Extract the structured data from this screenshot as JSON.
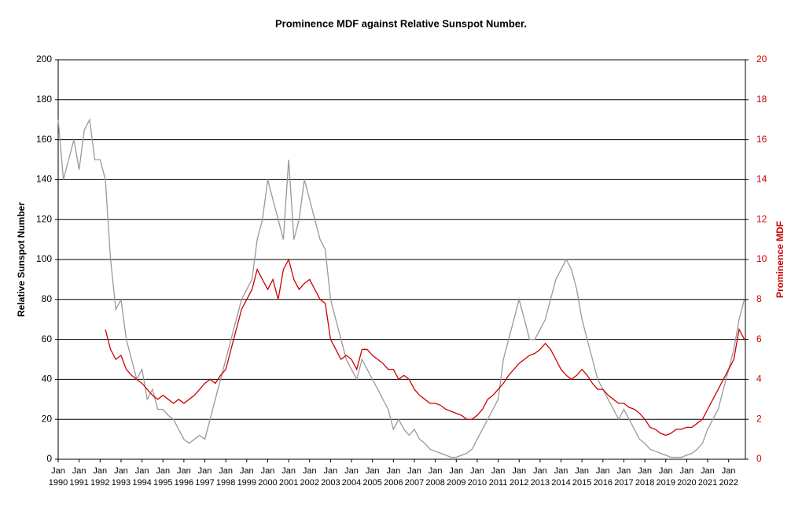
{
  "chart_data": {
    "type": "line",
    "title": "Prominence MDF against Relative Sunspot Number.",
    "ylabel": "Relative Sunspot Number",
    "y2label": "Prominence MDF",
    "tick_prefix": "Jan",
    "x": [
      1990,
      1990.25,
      1990.5,
      1990.75,
      1991,
      1991.25,
      1991.5,
      1991.75,
      1992,
      1992.25,
      1992.5,
      1992.75,
      1993,
      1993.25,
      1993.5,
      1993.75,
      1994,
      1994.25,
      1994.5,
      1994.75,
      1995,
      1995.25,
      1995.5,
      1995.75,
      1996,
      1996.25,
      1996.5,
      1996.75,
      1997,
      1997.25,
      1997.5,
      1997.75,
      1998,
      1998.25,
      1998.5,
      1998.75,
      1999,
      1999.25,
      1999.5,
      1999.75,
      2000,
      2000.25,
      2000.5,
      2000.75,
      2001,
      2001.25,
      2001.5,
      2001.75,
      2002,
      2002.25,
      2002.5,
      2002.75,
      2003,
      2003.25,
      2003.5,
      2003.75,
      2004,
      2004.25,
      2004.5,
      2004.75,
      2005,
      2005.25,
      2005.5,
      2005.75,
      2006,
      2006.25,
      2006.5,
      2006.75,
      2007,
      2007.25,
      2007.5,
      2007.75,
      2008,
      2008.25,
      2008.5,
      2008.75,
      2009,
      2009.25,
      2009.5,
      2009.75,
      2010,
      2010.25,
      2010.5,
      2010.75,
      2011,
      2011.25,
      2011.5,
      2011.75,
      2012,
      2012.25,
      2012.5,
      2012.75,
      2013,
      2013.25,
      2013.5,
      2013.75,
      2014,
      2014.25,
      2014.5,
      2014.75,
      2015,
      2015.25,
      2015.5,
      2015.75,
      2016,
      2016.25,
      2016.5,
      2016.75,
      2017,
      2017.25,
      2017.5,
      2017.75,
      2018,
      2018.25,
      2018.5,
      2018.75,
      2019,
      2019.25,
      2019.5,
      2019.75,
      2020,
      2020.25,
      2020.5,
      2020.75,
      2021,
      2021.25,
      2021.5,
      2021.75,
      2022,
      2022.25,
      2022.5,
      2022.75
    ],
    "series": [
      {
        "name": "Relative Sunspot Number",
        "color": "#999999",
        "axis": "y",
        "values": [
          170,
          140,
          150,
          160,
          145,
          165,
          170,
          150,
          150,
          140,
          100,
          75,
          80,
          60,
          50,
          40,
          45,
          30,
          35,
          25,
          25,
          22,
          20,
          15,
          10,
          8,
          10,
          12,
          10,
          20,
          30,
          40,
          50,
          60,
          70,
          80,
          85,
          90,
          110,
          120,
          140,
          130,
          120,
          110,
          150,
          110,
          120,
          140,
          130,
          120,
          110,
          105,
          80,
          70,
          60,
          50,
          45,
          40,
          50,
          45,
          40,
          35,
          30,
          25,
          15,
          20,
          15,
          12,
          15,
          10,
          8,
          5,
          4,
          3,
          2,
          1,
          1,
          2,
          3,
          5,
          10,
          15,
          20,
          25,
          30,
          50,
          60,
          70,
          80,
          70,
          60,
          60,
          65,
          70,
          80,
          90,
          95,
          100,
          95,
          85,
          70,
          60,
          50,
          40,
          35,
          30,
          25,
          20,
          25,
          20,
          15,
          10,
          8,
          5,
          4,
          3,
          2,
          1,
          1,
          1,
          2,
          3,
          5,
          8,
          15,
          20,
          25,
          35,
          45,
          55,
          70,
          80
        ]
      },
      {
        "name": "Prominence MDF",
        "color": "#cc0000",
        "axis": "y2",
        "values": [
          null,
          null,
          null,
          null,
          null,
          null,
          null,
          null,
          null,
          6.5,
          5.5,
          5.0,
          5.2,
          4.5,
          4.2,
          4.0,
          3.8,
          3.5,
          3.2,
          3.0,
          3.2,
          3.0,
          2.8,
          3.0,
          2.8,
          3.0,
          3.2,
          3.5,
          3.8,
          4.0,
          3.8,
          4.2,
          4.5,
          5.5,
          6.5,
          7.5,
          8.0,
          8.5,
          9.5,
          9.0,
          8.5,
          9.0,
          8.0,
          9.5,
          10.0,
          9.0,
          8.5,
          8.8,
          9.0,
          8.5,
          8.0,
          7.8,
          6.0,
          5.5,
          5.0,
          5.2,
          5.0,
          4.5,
          5.5,
          5.5,
          5.2,
          5.0,
          4.8,
          4.5,
          4.5,
          4.0,
          4.2,
          4.0,
          3.5,
          3.2,
          3.0,
          2.8,
          2.8,
          2.7,
          2.5,
          2.4,
          2.3,
          2.2,
          2.0,
          2.0,
          2.2,
          2.5,
          3.0,
          3.2,
          3.5,
          3.8,
          4.2,
          4.5,
          4.8,
          5.0,
          5.2,
          5.3,
          5.5,
          5.8,
          5.5,
          5.0,
          4.5,
          4.2,
          4.0,
          4.2,
          4.5,
          4.2,
          3.8,
          3.5,
          3.5,
          3.2,
          3.0,
          2.8,
          2.8,
          2.6,
          2.5,
          2.3,
          2.0,
          1.6,
          1.5,
          1.3,
          1.2,
          1.3,
          1.5,
          1.5,
          1.6,
          1.6,
          1.8,
          2.0,
          2.5,
          3.0,
          3.5,
          4.0,
          4.5,
          5.0,
          6.5,
          6.0
        ]
      }
    ],
    "xlim": [
      1990,
      2022.8
    ],
    "xticks": [
      1990,
      1991,
      1992,
      1993,
      1994,
      1995,
      1996,
      1997,
      1998,
      1999,
      2000,
      2001,
      2002,
      2003,
      2004,
      2005,
      2006,
      2007,
      2008,
      2009,
      2010,
      2011,
      2012,
      2013,
      2014,
      2015,
      2016,
      2017,
      2018,
      2019,
      2020,
      2021,
      2022
    ],
    "ylim": [
      0,
      200
    ],
    "yticks": [
      0,
      20,
      40,
      60,
      80,
      100,
      120,
      140,
      160,
      180,
      200
    ],
    "y2lim": [
      0,
      20
    ],
    "y2ticks": [
      0,
      2,
      4,
      6,
      8,
      10,
      12,
      14,
      16,
      18,
      20
    ],
    "grid": true
  }
}
